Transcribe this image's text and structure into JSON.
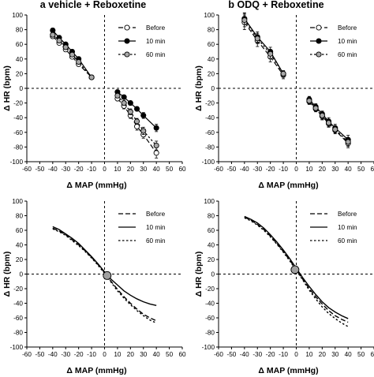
{
  "chart_data": [
    {
      "id": "a_top",
      "type": "line",
      "title": "a vehicle + Reboxetine",
      "xlabel": "Δ MAP (mmHg)",
      "ylabel": "Δ HR (bpm)",
      "xlim": [
        -60,
        60
      ],
      "ylim": [
        -100,
        100
      ],
      "xticks": [
        "-60",
        "-50",
        "-40",
        "-30",
        "-20",
        "-10",
        "0",
        "10",
        "20",
        "30",
        "40",
        "50",
        "60"
      ],
      "yticks": [
        "-100",
        "-80",
        "-60",
        "-40",
        "-20",
        "0",
        "20",
        "40",
        "60",
        "80",
        "100"
      ],
      "grid": false,
      "legend": "top-right",
      "series": [
        {
          "name": "Before",
          "marker": "open",
          "line": "dashed",
          "segments": [
            {
              "x": [
                -40,
                -35,
                -30,
                -25,
                -20,
                -10
              ],
              "y": [
                71,
                62,
                53,
                43,
                33,
                15
              ],
              "err": [
                3,
                3,
                3,
                2,
                3,
                2
              ]
            },
            {
              "x": [
                10,
                15,
                20,
                25,
                30,
                40
              ],
              "y": [
                -14,
                -24,
                -37,
                -52,
                -63,
                -88
              ],
              "err": [
                3,
                4,
                4,
                5,
                5,
                7
              ]
            }
          ]
        },
        {
          "name": "10 min",
          "marker": "filled",
          "line": "solid",
          "segments": [
            {
              "x": [
                -40,
                -35,
                -30,
                -25,
                -20,
                -10
              ],
              "y": [
                79,
                69,
                60,
                50,
                40,
                15
              ],
              "err": [
                3,
                3,
                3,
                3,
                3,
                2
              ]
            },
            {
              "x": [
                10,
                15,
                20,
                25,
                30,
                40
              ],
              "y": [
                -5,
                -12,
                -20,
                -28,
                -37,
                -54
              ],
              "err": [
                3,
                3,
                3,
                3,
                4,
                5
              ]
            }
          ]
        },
        {
          "name": "60 min",
          "marker": "grey",
          "line": "dotted",
          "segments": [
            {
              "x": [
                -40,
                -35,
                -30,
                -25,
                -20,
                -10
              ],
              "y": [
                73,
                65,
                56,
                46,
                36,
                15
              ],
              "err": [
                3,
                3,
                3,
                3,
                3,
                2
              ]
            },
            {
              "x": [
                10,
                15,
                20,
                25,
                30,
                40
              ],
              "y": [
                -10,
                -20,
                -32,
                -45,
                -58,
                -78
              ],
              "err": [
                3,
                3,
                4,
                4,
                5,
                6
              ]
            }
          ]
        }
      ]
    },
    {
      "id": "b_top",
      "type": "line",
      "title": "b ODQ + Reboxetine",
      "xlabel": "Δ MAP (mmHg)",
      "ylabel": "Δ HR (bpm)",
      "xlim": [
        -60,
        60
      ],
      "ylim": [
        -100,
        100
      ],
      "xticks": [
        "-60",
        "-50",
        "-40",
        "-30",
        "-20",
        "-10",
        "0",
        "10",
        "20",
        "30",
        "40",
        "50",
        "60"
      ],
      "yticks": [
        "-100",
        "-80",
        "-60",
        "-40",
        "-20",
        "0",
        "20",
        "40",
        "60",
        "80",
        "100"
      ],
      "grid": false,
      "legend": "top-right",
      "series": [
        {
          "name": "Before",
          "marker": "open",
          "line": "dashed",
          "segments": [
            {
              "x": [
                -40,
                -30,
                -20,
                -10
              ],
              "y": [
                90,
                65,
                43,
                18
              ],
              "err": [
                10,
                8,
                7,
                5
              ]
            },
            {
              "x": [
                10,
                15,
                20,
                25,
                30,
                40
              ],
              "y": [
                -18,
                -28,
                -38,
                -48,
                -57,
                -75
              ],
              "err": [
                4,
                4,
                5,
                5,
                5,
                6
              ]
            }
          ]
        },
        {
          "name": "10 min",
          "marker": "filled",
          "line": "solid",
          "segments": [
            {
              "x": [
                -40,
                -30,
                -20,
                -10
              ],
              "y": [
                95,
                70,
                50,
                20
              ],
              "err": [
                8,
                7,
                6,
                4
              ]
            },
            {
              "x": [
                10,
                15,
                20,
                25,
                30,
                40
              ],
              "y": [
                -15,
                -25,
                -35,
                -45,
                -54,
                -70
              ],
              "err": [
                4,
                4,
                4,
                5,
                5,
                6
              ]
            }
          ]
        },
        {
          "name": "60 min",
          "marker": "grey",
          "line": "dotted",
          "segments": [
            {
              "x": [
                -40,
                -30,
                -20,
                -10
              ],
              "y": [
                93,
                68,
                47,
                20
              ],
              "err": [
                9,
                7,
                6,
                4
              ]
            },
            {
              "x": [
                10,
                15,
                20,
                25,
                30,
                40
              ],
              "y": [
                -17,
                -27,
                -37,
                -47,
                -56,
                -73
              ],
              "err": [
                4,
                4,
                5,
                5,
                5,
                6
              ]
            }
          ]
        }
      ]
    },
    {
      "id": "a_bottom",
      "type": "line",
      "title": "",
      "xlabel": "Δ MAP (mmHg)",
      "ylabel": "Δ HR (bpm)",
      "xlim": [
        -60,
        60
      ],
      "ylim": [
        -100,
        100
      ],
      "xticks": [
        "-60",
        "-50",
        "-40",
        "-30",
        "-20",
        "-10",
        "0",
        "10",
        "20",
        "30",
        "40",
        "50",
        "60"
      ],
      "yticks": [
        "-100",
        "-80",
        "-60",
        "-40",
        "-20",
        "0",
        "20",
        "40",
        "60",
        "80",
        "100"
      ],
      "grid": false,
      "legend": "top-right",
      "midpoint": {
        "x": 2,
        "y": -2
      },
      "series": [
        {
          "name": "Before",
          "line": "dashed",
          "x": [
            -40,
            -35,
            -30,
            -25,
            -20,
            -15,
            -10,
            -5,
            0,
            5,
            10,
            15,
            20,
            25,
            30,
            35,
            40
          ],
          "y": [
            63,
            59,
            54,
            47,
            40,
            32,
            23,
            13,
            2,
            -10,
            -21,
            -31,
            -40,
            -48,
            -55,
            -60,
            -64
          ]
        },
        {
          "name": "10 min",
          "line": "solid",
          "x": [
            -40,
            -35,
            -30,
            -25,
            -20,
            -15,
            -10,
            -5,
            0,
            5,
            10,
            15,
            20,
            25,
            30,
            35,
            40
          ],
          "y": [
            65,
            61,
            55,
            49,
            42,
            33,
            24,
            14,
            3,
            -7,
            -15,
            -23,
            -29,
            -34,
            -38,
            -41,
            -43
          ]
        },
        {
          "name": "60 min",
          "line": "dotted",
          "x": [
            -40,
            -35,
            -30,
            -25,
            -20,
            -15,
            -10,
            -5,
            0,
            5,
            10,
            15,
            20,
            25,
            30,
            35,
            40
          ],
          "y": [
            62,
            58,
            53,
            46,
            39,
            31,
            22,
            12,
            1,
            -11,
            -23,
            -33,
            -42,
            -50,
            -57,
            -63,
            -67
          ]
        }
      ]
    },
    {
      "id": "b_bottom",
      "type": "line",
      "title": "",
      "xlabel": "Δ MAP (mmHg)",
      "ylabel": "Δ HR (bpm)",
      "xlim": [
        -60,
        60
      ],
      "ylim": [
        -100,
        100
      ],
      "xticks": [
        "-60",
        "-50",
        "-40",
        "-30",
        "-20",
        "-10",
        "0",
        "10",
        "20",
        "30",
        "40",
        "50",
        "60"
      ],
      "yticks": [
        "-100",
        "-80",
        "-60",
        "-40",
        "-20",
        "0",
        "20",
        "40",
        "60",
        "80",
        "100"
      ],
      "grid": false,
      "legend": "top-right",
      "midpoint": {
        "x": -1,
        "y": 6
      },
      "series": [
        {
          "name": "Before",
          "line": "dashed",
          "x": [
            -40,
            -35,
            -30,
            -25,
            -20,
            -15,
            -10,
            -5,
            0,
            5,
            10,
            15,
            20,
            25,
            30,
            35,
            40
          ],
          "y": [
            78,
            74,
            68,
            61,
            52,
            42,
            31,
            19,
            6,
            -7,
            -20,
            -31,
            -41,
            -50,
            -57,
            -62,
            -66
          ]
        },
        {
          "name": "10 min",
          "line": "solid",
          "x": [
            -40,
            -35,
            -30,
            -25,
            -20,
            -15,
            -10,
            -5,
            0,
            5,
            10,
            15,
            20,
            25,
            30,
            35,
            40
          ],
          "y": [
            79,
            75,
            70,
            63,
            54,
            44,
            33,
            21,
            8,
            -5,
            -17,
            -28,
            -38,
            -46,
            -52,
            -57,
            -61
          ]
        },
        {
          "name": "60 min",
          "line": "dotted",
          "x": [
            -40,
            -35,
            -30,
            -25,
            -20,
            -15,
            -10,
            -5,
            0,
            5,
            10,
            15,
            20,
            25,
            30,
            35,
            40
          ],
          "y": [
            77,
            73,
            67,
            60,
            51,
            41,
            30,
            18,
            5,
            -8,
            -22,
            -34,
            -45,
            -54,
            -61,
            -67,
            -72
          ]
        }
      ]
    }
  ]
}
